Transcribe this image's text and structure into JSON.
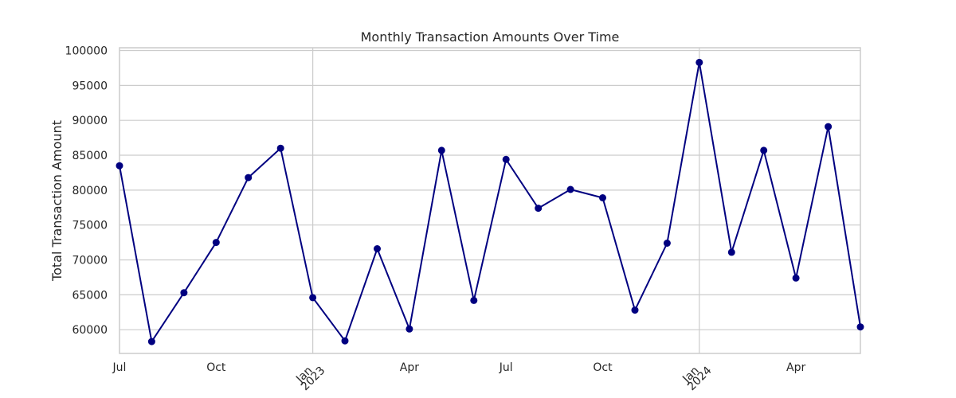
{
  "chart_data": {
    "type": "line",
    "title": "Monthly Transaction Amounts Over Time",
    "xlabel": "",
    "ylabel": "Total Transaction Amount",
    "x": [
      "2022-07",
      "2022-08",
      "2022-09",
      "2022-10",
      "2022-11",
      "2022-12",
      "2023-01",
      "2023-02",
      "2023-03",
      "2023-04",
      "2023-05",
      "2023-06",
      "2023-07",
      "2023-08",
      "2023-09",
      "2023-10",
      "2023-11",
      "2023-12",
      "2024-01",
      "2024-02",
      "2024-03",
      "2024-04",
      "2024-05",
      "2024-06"
    ],
    "series": [
      {
        "values": [
          83500,
          58300,
          65300,
          72500,
          81800,
          86000,
          64600,
          58400,
          71600,
          60100,
          85700,
          64200,
          84400,
          77400,
          80100,
          78900,
          62800,
          72400,
          98300,
          71100,
          85700,
          67400,
          89100,
          60400
        ]
      }
    ],
    "ylim": [
      56600,
      100400
    ],
    "yticks": [
      "60000",
      "65000",
      "70000",
      "75000",
      "80000",
      "85000",
      "90000",
      "95000",
      "100000"
    ],
    "xticks": [
      {
        "x": "2022-07",
        "label": "Jul",
        "sublabel": "",
        "rotated": false
      },
      {
        "x": "2022-10",
        "label": "Oct",
        "sublabel": "",
        "rotated": false
      },
      {
        "x": "2023-01",
        "label": "Jan",
        "sublabel": "2023",
        "rotated": true
      },
      {
        "x": "2023-04",
        "label": "Apr",
        "sublabel": "",
        "rotated": false
      },
      {
        "x": "2023-07",
        "label": "Jul",
        "sublabel": "",
        "rotated": false
      },
      {
        "x": "2023-10",
        "label": "Oct",
        "sublabel": "",
        "rotated": false
      },
      {
        "x": "2024-01",
        "label": "Jan",
        "sublabel": "2024",
        "rotated": true
      },
      {
        "x": "2024-04",
        "label": "Apr",
        "sublabel": "",
        "rotated": false
      }
    ],
    "grid": true,
    "line_color": "#000080",
    "grid_color": "#cccccc",
    "axis_color": "#cccccc"
  }
}
